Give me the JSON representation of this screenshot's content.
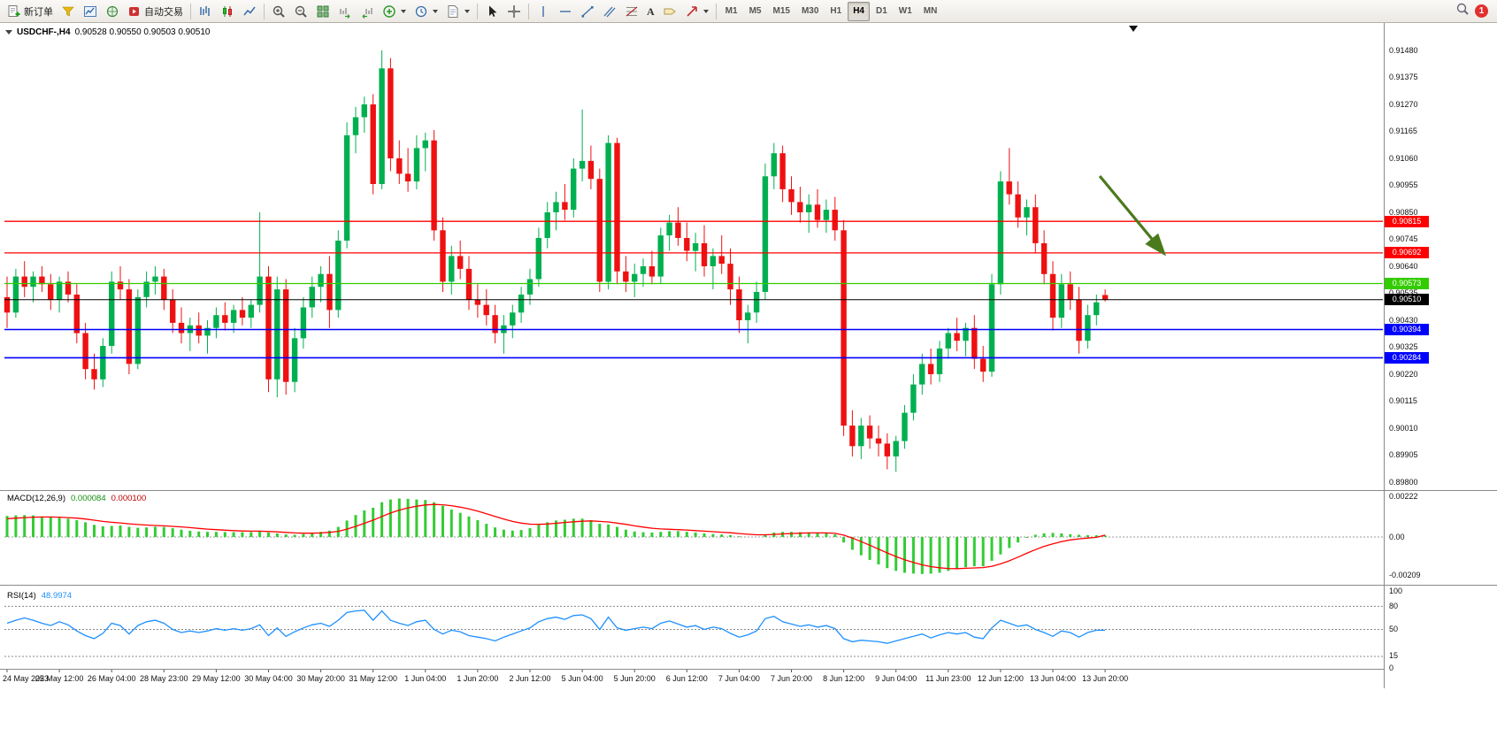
{
  "toolbar": {
    "new_order_label": "新订单",
    "autotrading_label": "自动交易",
    "timeframes": [
      "M1",
      "M5",
      "M15",
      "M30",
      "H1",
      "H4",
      "D1",
      "W1",
      "MN"
    ],
    "active_timeframe": "H4",
    "notification_badge": "1"
  },
  "icons": {
    "text_tool": "A"
  },
  "chart_header": {
    "symbol": "USDCHF-,H4",
    "ohlc": "0.90528 0.90550 0.90503 0.90510"
  },
  "price_axis": {
    "ticks": [
      "0.91480",
      "0.91375",
      "0.91270",
      "0.91165",
      "0.91060",
      "0.90955",
      "0.90850",
      "0.90745",
      "0.90640",
      "0.90535",
      "0.90430",
      "0.90325",
      "0.90220",
      "0.90115",
      "0.90010",
      "0.89905",
      "0.89800"
    ]
  },
  "time_axis": {
    "labels": [
      "24 May 2023",
      "25 May 12:00",
      "26 May 04:00",
      "28 May 23:00",
      "29 May 12:00",
      "30 May 04:00",
      "30 May 20:00",
      "31 May 12:00",
      "1 Jun 04:00",
      "1 Jun 20:00",
      "2 Jun 12:00",
      "5 Jun 04:00",
      "5 Jun 20:00",
      "6 Jun 12:00",
      "7 Jun 04:00",
      "7 Jun 20:00",
      "8 Jun 12:00",
      "9 Jun 04:00",
      "11 Jun 23:00",
      "12 Jun 12:00",
      "13 Jun 04:00",
      "13 Jun 20:00"
    ]
  },
  "macd_panel": {
    "label": "MACD(12,26,9)",
    "value_main": "0.000084",
    "value_signal": "0.000100",
    "axis_labels": [
      "0.00222",
      "0.00",
      "-0.00209"
    ],
    "axis_values": [
      0.00222,
      0,
      -0.00209
    ]
  },
  "rsi_panel": {
    "label": "RSI(14)",
    "value": "48.9974",
    "axis_labels": [
      "100",
      "80",
      "50",
      "15",
      "0"
    ],
    "axis_values": [
      100,
      80,
      50,
      15,
      0
    ]
  },
  "colors": {
    "bull": "#00B050",
    "bear": "#EE1111",
    "macd_bar": "#33CC33",
    "macd_signal": "#FF0000",
    "rsi_line": "#1E90FF",
    "arrow": "#4B7A1D"
  },
  "chart_data": {
    "type": "candlestick",
    "symbol": "USDCHF",
    "timeframe": "H4",
    "price_range": [
      0.898,
      0.9148
    ],
    "hlines": [
      {
        "price": 0.90815,
        "label": "0.90815",
        "color": "#FF0000"
      },
      {
        "price": 0.90692,
        "label": "0.90692",
        "color": "#FF0000"
      },
      {
        "price": 0.90573,
        "label": "0.90573",
        "color": "#33CC00"
      },
      {
        "price": 0.9051,
        "label": "0.90510",
        "color": "#000000"
      },
      {
        "price": 0.90394,
        "label": "0.90394",
        "color": "#0000FF"
      },
      {
        "price": 0.90284,
        "label": "0.90284",
        "color": "#0000FF"
      }
    ],
    "candles": [
      [
        0.9052,
        0.906,
        0.904,
        0.9046
      ],
      [
        0.9046,
        0.9063,
        0.9044,
        0.906
      ],
      [
        0.906,
        0.9066,
        0.9052,
        0.9056
      ],
      [
        0.9056,
        0.9062,
        0.905,
        0.906
      ],
      [
        0.906,
        0.9064,
        0.9054,
        0.9057
      ],
      [
        0.9057,
        0.9061,
        0.9047,
        0.9051
      ],
      [
        0.9051,
        0.906,
        0.9046,
        0.9058
      ],
      [
        0.9058,
        0.9062,
        0.905,
        0.9053
      ],
      [
        0.9053,
        0.9057,
        0.9034,
        0.9038
      ],
      [
        0.9038,
        0.9042,
        0.902,
        0.9024
      ],
      [
        0.9024,
        0.903,
        0.9016,
        0.902
      ],
      [
        0.902,
        0.9036,
        0.9017,
        0.9033
      ],
      [
        0.9033,
        0.9062,
        0.903,
        0.9058
      ],
      [
        0.9058,
        0.9064,
        0.9051,
        0.9055
      ],
      [
        0.9055,
        0.9059,
        0.9022,
        0.9026
      ],
      [
        0.9026,
        0.9055,
        0.9024,
        0.9052
      ],
      [
        0.9052,
        0.9062,
        0.9048,
        0.9058
      ],
      [
        0.9058,
        0.9064,
        0.9053,
        0.906
      ],
      [
        0.906,
        0.9063,
        0.9047,
        0.9051
      ],
      [
        0.9051,
        0.9055,
        0.9038,
        0.9042
      ],
      [
        0.9042,
        0.9048,
        0.9034,
        0.9038
      ],
      [
        0.9038,
        0.9044,
        0.9031,
        0.9041
      ],
      [
        0.9041,
        0.9046,
        0.9034,
        0.9037
      ],
      [
        0.9037,
        0.9043,
        0.903,
        0.904
      ],
      [
        0.904,
        0.9048,
        0.9036,
        0.9045
      ],
      [
        0.9045,
        0.905,
        0.9039,
        0.9042
      ],
      [
        0.9042,
        0.9049,
        0.9038,
        0.9047
      ],
      [
        0.9047,
        0.9052,
        0.9041,
        0.9044
      ],
      [
        0.9044,
        0.9051,
        0.904,
        0.9049
      ],
      [
        0.9049,
        0.9085,
        0.9046,
        0.906
      ],
      [
        0.906,
        0.9064,
        0.9015,
        0.902
      ],
      [
        0.902,
        0.906,
        0.9013,
        0.9055
      ],
      [
        0.9055,
        0.9059,
        0.9014,
        0.9019
      ],
      [
        0.9019,
        0.904,
        0.9015,
        0.9036
      ],
      [
        0.9036,
        0.9052,
        0.9032,
        0.9048
      ],
      [
        0.9048,
        0.906,
        0.9044,
        0.9056
      ],
      [
        0.9056,
        0.9064,
        0.905,
        0.9061
      ],
      [
        0.9061,
        0.9068,
        0.904,
        0.9047
      ],
      [
        0.9047,
        0.9078,
        0.9044,
        0.9074
      ],
      [
        0.9074,
        0.912,
        0.9071,
        0.9115
      ],
      [
        0.9115,
        0.9126,
        0.9108,
        0.9122
      ],
      [
        0.9122,
        0.913,
        0.9116,
        0.9127
      ],
      [
        0.9127,
        0.9131,
        0.9092,
        0.9096
      ],
      [
        0.9096,
        0.9148,
        0.9094,
        0.9141
      ],
      [
        0.9141,
        0.9145,
        0.9101,
        0.9106
      ],
      [
        0.9106,
        0.9113,
        0.9096,
        0.91
      ],
      [
        0.91,
        0.911,
        0.9093,
        0.9097
      ],
      [
        0.9097,
        0.9115,
        0.9094,
        0.911
      ],
      [
        0.911,
        0.9116,
        0.9101,
        0.9113
      ],
      [
        0.9113,
        0.9117,
        0.9074,
        0.9078
      ],
      [
        0.9078,
        0.9083,
        0.9054,
        0.9058
      ],
      [
        0.9058,
        0.9072,
        0.9053,
        0.9068
      ],
      [
        0.9068,
        0.9074,
        0.9059,
        0.9063
      ],
      [
        0.9063,
        0.9068,
        0.9047,
        0.9051
      ],
      [
        0.9051,
        0.9057,
        0.9044,
        0.9049
      ],
      [
        0.9049,
        0.9055,
        0.9041,
        0.9045
      ],
      [
        0.9045,
        0.9049,
        0.9034,
        0.9038
      ],
      [
        0.9038,
        0.9045,
        0.903,
        0.9041
      ],
      [
        0.9041,
        0.9049,
        0.9036,
        0.9046
      ],
      [
        0.9046,
        0.9056,
        0.9042,
        0.9053
      ],
      [
        0.9053,
        0.9063,
        0.9049,
        0.9059
      ],
      [
        0.9059,
        0.9079,
        0.9056,
        0.9075
      ],
      [
        0.9075,
        0.9089,
        0.9071,
        0.9085
      ],
      [
        0.9085,
        0.9093,
        0.9078,
        0.9089
      ],
      [
        0.9089,
        0.9096,
        0.9082,
        0.9086
      ],
      [
        0.9086,
        0.9106,
        0.9083,
        0.9102
      ],
      [
        0.9102,
        0.9125,
        0.9097,
        0.9105
      ],
      [
        0.9105,
        0.9111,
        0.9094,
        0.9098
      ],
      [
        0.9098,
        0.9102,
        0.9054,
        0.9058
      ],
      [
        0.9058,
        0.9115,
        0.9055,
        0.9112
      ],
      [
        0.9112,
        0.9114,
        0.9057,
        0.9062
      ],
      [
        0.9062,
        0.9068,
        0.9054,
        0.9058
      ],
      [
        0.9058,
        0.9065,
        0.9052,
        0.9061
      ],
      [
        0.9061,
        0.9067,
        0.9056,
        0.9064
      ],
      [
        0.9064,
        0.907,
        0.9057,
        0.906
      ],
      [
        0.906,
        0.9079,
        0.9057,
        0.9076
      ],
      [
        0.9076,
        0.9084,
        0.907,
        0.9081
      ],
      [
        0.9081,
        0.9087,
        0.9072,
        0.9075
      ],
      [
        0.9075,
        0.9081,
        0.9066,
        0.907
      ],
      [
        0.907,
        0.9077,
        0.9062,
        0.9073
      ],
      [
        0.9073,
        0.908,
        0.906,
        0.9064
      ],
      [
        0.9064,
        0.9071,
        0.9055,
        0.9068
      ],
      [
        0.9068,
        0.9076,
        0.9061,
        0.9065
      ],
      [
        0.9065,
        0.9071,
        0.9049,
        0.9055
      ],
      [
        0.9055,
        0.906,
        0.9038,
        0.9043
      ],
      [
        0.9043,
        0.9049,
        0.9034,
        0.9046
      ],
      [
        0.9046,
        0.9058,
        0.9042,
        0.9054
      ],
      [
        0.9054,
        0.9104,
        0.9051,
        0.9099
      ],
      [
        0.9099,
        0.9112,
        0.9094,
        0.9108
      ],
      [
        0.9108,
        0.9111,
        0.9089,
        0.9094
      ],
      [
        0.9094,
        0.9099,
        0.9084,
        0.9089
      ],
      [
        0.9089,
        0.9095,
        0.9081,
        0.9085
      ],
      [
        0.9085,
        0.9092,
        0.9077,
        0.9088
      ],
      [
        0.9088,
        0.9094,
        0.9079,
        0.9082
      ],
      [
        0.9082,
        0.909,
        0.9077,
        0.9086
      ],
      [
        0.9086,
        0.9091,
        0.9074,
        0.9078
      ],
      [
        0.9078,
        0.9082,
        0.8998,
        0.9002
      ],
      [
        0.9002,
        0.9008,
        0.899,
        0.8994
      ],
      [
        0.8994,
        0.9005,
        0.8989,
        0.9002
      ],
      [
        0.9002,
        0.9006,
        0.8993,
        0.8997
      ],
      [
        0.8997,
        0.9002,
        0.899,
        0.8995
      ],
      [
        0.8995,
        0.8999,
        0.8985,
        0.899
      ],
      [
        0.899,
        0.8998,
        0.8984,
        0.8996
      ],
      [
        0.8996,
        0.901,
        0.8993,
        0.9007
      ],
      [
        0.9007,
        0.9022,
        0.9004,
        0.9018
      ],
      [
        0.9018,
        0.903,
        0.9014,
        0.9026
      ],
      [
        0.9026,
        0.9032,
        0.9018,
        0.9022
      ],
      [
        0.9022,
        0.9035,
        0.9019,
        0.9032
      ],
      [
        0.9032,
        0.904,
        0.9028,
        0.9038
      ],
      [
        0.9038,
        0.9044,
        0.9031,
        0.9035
      ],
      [
        0.9035,
        0.9042,
        0.9029,
        0.904
      ],
      [
        0.904,
        0.9045,
        0.9024,
        0.9028
      ],
      [
        0.9028,
        0.9033,
        0.9019,
        0.9023
      ],
      [
        0.9023,
        0.9061,
        0.9021,
        0.9057
      ],
      [
        0.9057,
        0.9101,
        0.9053,
        0.9097
      ],
      [
        0.9097,
        0.911,
        0.9088,
        0.9092
      ],
      [
        0.9092,
        0.9097,
        0.9079,
        0.9083
      ],
      [
        0.9083,
        0.909,
        0.9076,
        0.9087
      ],
      [
        0.9087,
        0.9092,
        0.9069,
        0.9073
      ],
      [
        0.9073,
        0.9078,
        0.9057,
        0.9061
      ],
      [
        0.9061,
        0.9066,
        0.9039,
        0.9044
      ],
      [
        0.9044,
        0.9061,
        0.904,
        0.9057
      ],
      [
        0.9057,
        0.9062,
        0.9047,
        0.9051
      ],
      [
        0.9051,
        0.9056,
        0.903,
        0.9035
      ],
      [
        0.9035,
        0.9049,
        0.9032,
        0.9045
      ],
      [
        0.9045,
        0.9053,
        0.9041,
        0.905
      ],
      [
        0.90528,
        0.9055,
        0.90503,
        0.9051
      ]
    ],
    "macd": {
      "histogram": [
        0.00115,
        0.00118,
        0.0012,
        0.00118,
        0.00112,
        0.00108,
        0.00105,
        0.001,
        0.00092,
        0.0008,
        0.00066,
        0.00058,
        0.0006,
        0.00063,
        0.00055,
        0.0005,
        0.00052,
        0.00056,
        0.00055,
        0.00048,
        0.0004,
        0.00034,
        0.0003,
        0.00028,
        0.00028,
        0.00027,
        0.00026,
        0.00026,
        0.00027,
        0.00032,
        0.00024,
        0.0002,
        0.00014,
        0.00012,
        0.00016,
        0.0002,
        0.00028,
        0.00035,
        0.00055,
        0.0009,
        0.0012,
        0.00145,
        0.0016,
        0.0019,
        0.00205,
        0.0021,
        0.00208,
        0.00205,
        0.00202,
        0.0019,
        0.0017,
        0.0015,
        0.00132,
        0.00112,
        0.00092,
        0.00072,
        0.00052,
        0.0004,
        0.00035,
        0.00038,
        0.00048,
        0.00065,
        0.0008,
        0.0009,
        0.00094,
        0.001,
        0.001,
        0.00092,
        0.00072,
        0.00068,
        0.00055,
        0.0004,
        0.0003,
        0.00026,
        0.00024,
        0.00028,
        0.00032,
        0.00032,
        0.00028,
        0.00024,
        0.0002,
        0.00016,
        0.00014,
        0.0001,
        4e-05,
        0.0,
        0.0,
        0.00012,
        0.00024,
        0.00028,
        0.00028,
        0.00026,
        0.00024,
        0.00022,
        0.0002,
        0.00014,
        -0.0003,
        -0.0007,
        -0.001,
        -0.00125,
        -0.0015,
        -0.0017,
        -0.00185,
        -0.00195,
        -0.002,
        -0.00202,
        -0.002,
        -0.00195,
        -0.00185,
        -0.00175,
        -0.00165,
        -0.0016,
        -0.0016,
        -0.0013,
        -0.00095,
        -0.0006,
        -0.0003,
        -5e-05,
        0.00012,
        0.0002,
        0.00022,
        0.0002,
        0.00015,
        0.00012,
        0.0001,
        9e-05,
        8.4e-05
      ],
      "signal": [
        0.001,
        0.00103,
        0.00106,
        0.00108,
        0.00109,
        0.00109,
        0.00108,
        0.00106,
        0.00103,
        0.00098,
        0.00092,
        0.00085,
        0.0008,
        0.00077,
        0.00072,
        0.00068,
        0.00065,
        0.00063,
        0.00061,
        0.00058,
        0.00055,
        0.00051,
        0.00047,
        0.00043,
        0.0004,
        0.00037,
        0.00035,
        0.00033,
        0.00032,
        0.00032,
        0.0003,
        0.00028,
        0.00025,
        0.00022,
        0.00021,
        0.00021,
        0.00022,
        0.00025,
        0.00031,
        0.00043,
        0.00058,
        0.00075,
        0.00092,
        0.00112,
        0.00131,
        0.00147,
        0.00159,
        0.00168,
        0.00175,
        0.00178,
        0.00176,
        0.00171,
        0.00163,
        0.00153,
        0.00141,
        0.00127,
        0.00112,
        0.00098,
        0.00085,
        0.00076,
        0.0007,
        0.00069,
        0.00071,
        0.00075,
        0.00079,
        0.00083,
        0.00086,
        0.00088,
        0.00085,
        0.00082,
        0.00076,
        0.00069,
        0.00061,
        0.00054,
        0.00048,
        0.00044,
        0.00042,
        0.0004,
        0.00038,
        0.00035,
        0.00032,
        0.00029,
        0.00026,
        0.00023,
        0.00019,
        0.00015,
        0.00012,
        0.00012,
        0.00014,
        0.00017,
        0.00019,
        0.00021,
        0.00022,
        0.00022,
        0.00022,
        0.0002,
        0.0001,
        -6e-05,
        -0.00025,
        -0.00045,
        -0.00066,
        -0.00087,
        -0.00107,
        -0.00124,
        -0.00139,
        -0.00152,
        -0.00162,
        -0.00168,
        -0.00172,
        -0.00173,
        -0.00171,
        -0.00169,
        -0.00167,
        -0.0016,
        -0.00147,
        -0.0013,
        -0.0011,
        -0.00089,
        -0.00069,
        -0.00051,
        -0.00037,
        -0.00025,
        -0.00016,
        -0.0001,
        -6e-05,
        -2e-05,
        0.0001
      ],
      "range": [
        -0.00209,
        0.00222
      ]
    },
    "rsi": {
      "values": [
        58,
        62,
        65,
        62,
        58,
        55,
        60,
        56,
        48,
        42,
        38,
        45,
        58,
        55,
        44,
        55,
        60,
        62,
        58,
        50,
        46,
        48,
        46,
        48,
        51,
        49,
        51,
        49,
        51,
        56,
        42,
        52,
        41,
        47,
        52,
        56,
        58,
        54,
        62,
        72,
        74,
        75,
        62,
        74,
        62,
        58,
        55,
        60,
        62,
        50,
        44,
        49,
        47,
        42,
        40,
        38,
        35,
        40,
        44,
        48,
        52,
        60,
        64,
        66,
        63,
        68,
        69,
        64,
        50,
        66,
        52,
        49,
        51,
        53,
        51,
        58,
        61,
        57,
        53,
        55,
        50,
        53,
        51,
        45,
        40,
        43,
        48,
        64,
        67,
        60,
        57,
        54,
        56,
        53,
        55,
        51,
        38,
        34,
        36,
        35,
        34,
        32,
        35,
        38,
        41,
        44,
        39,
        43,
        46,
        44,
        46,
        40,
        38,
        52,
        62,
        58,
        54,
        56,
        50,
        46,
        41,
        48,
        46,
        40,
        46,
        49,
        49
      ],
      "levels": [
        80,
        50,
        15
      ],
      "range": [
        0,
        100
      ]
    },
    "annotation_arrow": {
      "from": [
        1243,
        199
      ],
      "to": [
        1316,
        287
      ]
    }
  }
}
